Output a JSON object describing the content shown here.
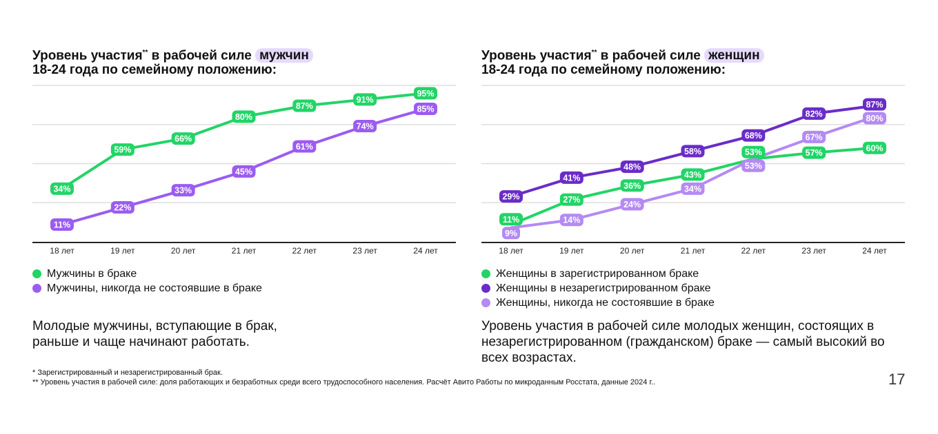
{
  "colors": {
    "green": "#22d466",
    "purple": "#9b5cf0",
    "dark_purple": "#6a2cc8",
    "light_purple": "#b48af3",
    "highlight": "#e5dafc"
  },
  "left": {
    "title_pre": "Уровень участия",
    "title_sup": "**",
    "title_mid": " в рабочей силе ",
    "title_hl": "мужчин",
    "title_line2": "18-24 года по семейному положению:",
    "note": "Молодые мужчины, вступающие в брак, раньше и чаще начинают работать."
  },
  "right": {
    "title_pre": "Уровень участия",
    "title_sup": "**",
    "title_mid": " в рабочей силе ",
    "title_hl": "женщин",
    "title_line2": "18-24 года по семейному положению:",
    "note": "Уровень участия в рабочей силе молодых женщин, состоящих в незарегистрированном (гражданском) браке — самый высокий во всех возрастах."
  },
  "chart_data": [
    {
      "type": "line",
      "categories": [
        "18 лет",
        "19 лет",
        "20 лет",
        "21 лет",
        "22 лет",
        "23 лет",
        "24 лет"
      ],
      "ylim": [
        0,
        100
      ],
      "grid": true,
      "legend": "bottom-left",
      "series": [
        {
          "name": "Мужчины в браке",
          "color": "#22d466",
          "values": [
            34,
            59,
            66,
            80,
            87,
            91,
            95
          ]
        },
        {
          "name": "Мужчины, никогда не состоявшие в браке",
          "color": "#9b5cf0",
          "values": [
            11,
            22,
            33,
            45,
            61,
            74,
            85
          ]
        }
      ]
    },
    {
      "type": "line",
      "categories": [
        "18 лет",
        "19 лет",
        "20 лет",
        "21 лет",
        "22 лет",
        "23 лет",
        "24 лет"
      ],
      "ylim": [
        0,
        100
      ],
      "grid": true,
      "legend": "bottom-left",
      "series": [
        {
          "name": "Женщины в зарегистрированном браке",
          "color": "#22d466",
          "values": [
            11,
            27,
            36,
            43,
            53,
            57,
            60
          ]
        },
        {
          "name": "Женщины в незарегистрированном браке",
          "color": "#6a2cc8",
          "values": [
            29,
            41,
            48,
            58,
            68,
            82,
            87
          ]
        },
        {
          "name": "Женщины, никогда не состоявшие в браке",
          "color": "#b48af3",
          "values": [
            9,
            14,
            24,
            34,
            53,
            67,
            80
          ]
        }
      ]
    }
  ],
  "footnotes": [
    "* Зарегистрированный и незарегистрированный брак.",
    "** Уровень участия в рабочей силе: доля работающих и безработных среди всего трудоспособного населения. Расчёт Авито Работы по микроданным Росстата, данные 2024 г.."
  ],
  "page_number": "17"
}
